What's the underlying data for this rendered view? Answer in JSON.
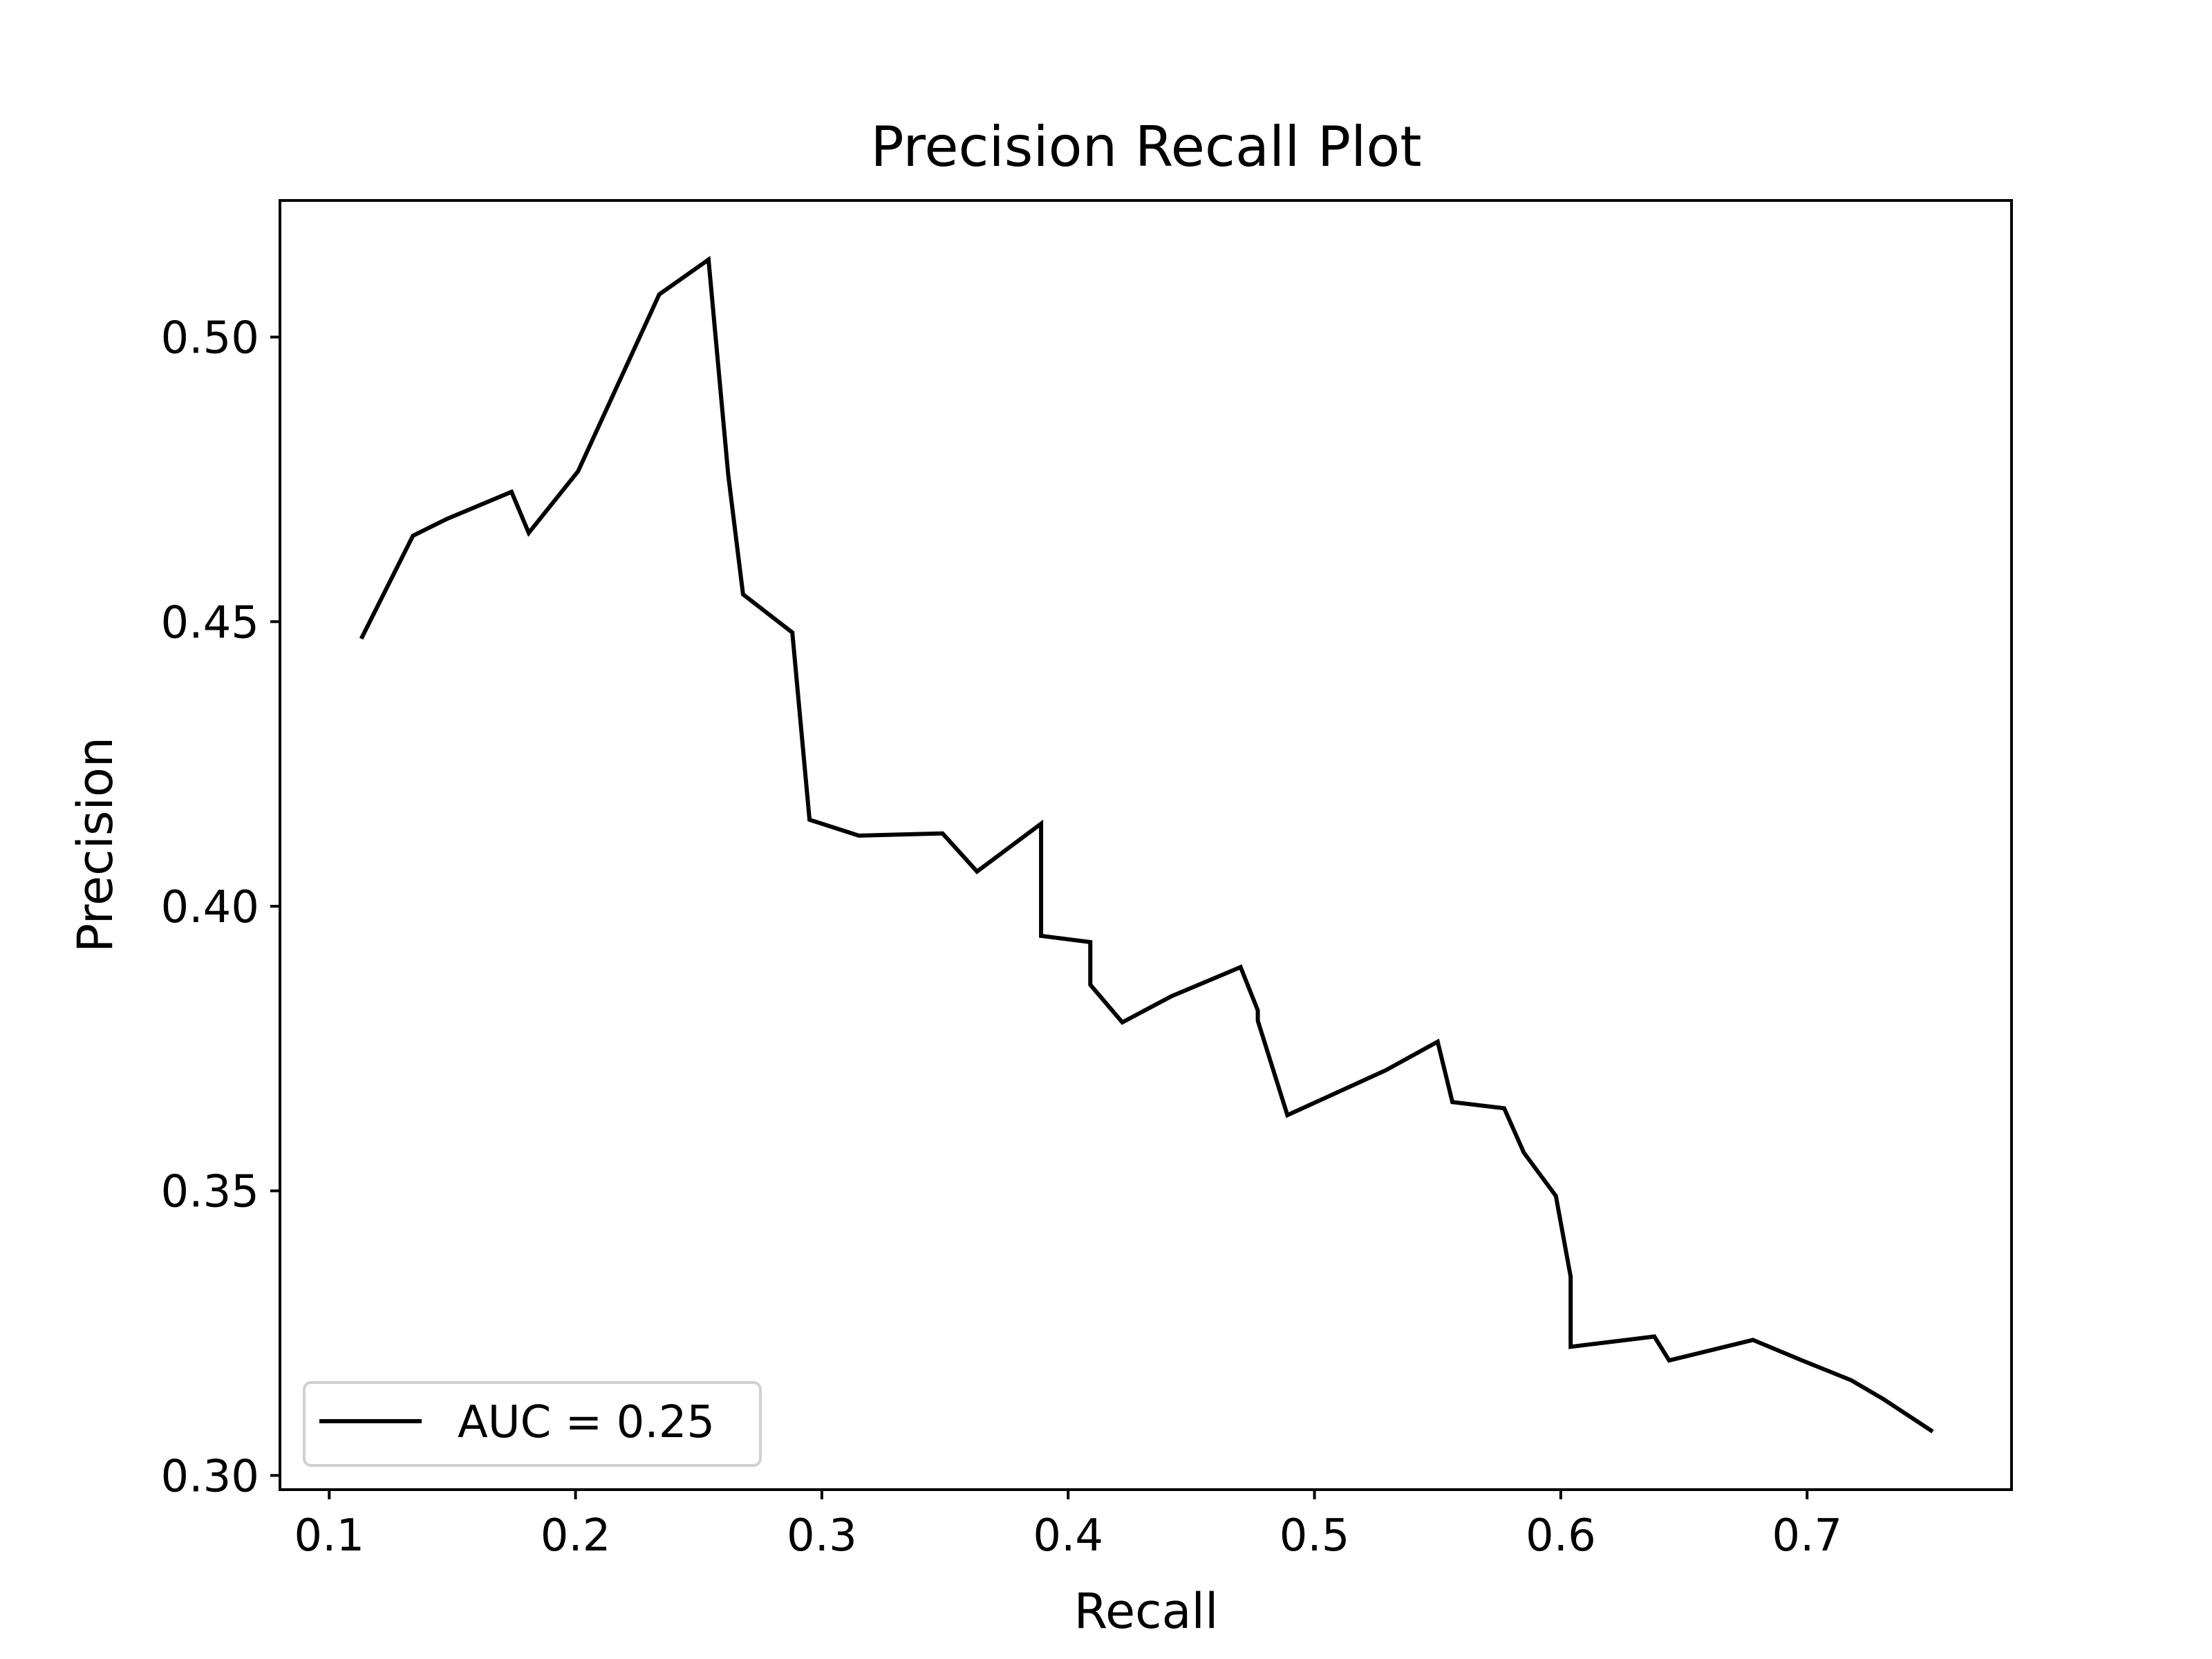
{
  "chart_data": {
    "type": "line",
    "title": "Precision Recall Plot",
    "xlabel": "Recall",
    "ylabel": "Precision",
    "xlim": [
      0.08,
      0.783
    ],
    "ylim": [
      0.2975,
      0.524
    ],
    "xticks": [
      0.1,
      0.2,
      0.3,
      0.4,
      0.5,
      0.6,
      0.7
    ],
    "xtick_labels": [
      "0.1",
      "0.2",
      "0.3",
      "0.4",
      "0.5",
      "0.6",
      "0.7"
    ],
    "yticks": [
      0.3,
      0.35,
      0.4,
      0.45,
      0.5
    ],
    "ytick_labels": [
      "0.30",
      "0.35",
      "0.40",
      "0.45",
      "0.50"
    ],
    "grid": false,
    "legend_position": "lower-left",
    "series": [
      {
        "name": "AUC = 0.25",
        "color": "#000000",
        "x": [
          0.113,
          0.134,
          0.148,
          0.174,
          0.181,
          0.201,
          0.234,
          0.254,
          0.262,
          0.268,
          0.288,
          0.295,
          0.315,
          0.349,
          0.363,
          0.389,
          0.389,
          0.409,
          0.409,
          0.422,
          0.442,
          0.47,
          0.477,
          0.477,
          0.489,
          0.529,
          0.55,
          0.556,
          0.577,
          0.585,
          0.598,
          0.604,
          0.604,
          0.638,
          0.644,
          0.678,
          0.698,
          0.718,
          0.731,
          0.751
        ],
        "y": [
          0.447,
          0.4651,
          0.4681,
          0.4728,
          0.4656,
          0.4764,
          0.5075,
          0.5136,
          0.4758,
          0.4548,
          0.4481,
          0.4152,
          0.4124,
          0.4128,
          0.4061,
          0.4145,
          0.3948,
          0.3937,
          0.3862,
          0.3796,
          0.3842,
          0.3893,
          0.3817,
          0.3799,
          0.3633,
          0.3712,
          0.3762,
          0.3656,
          0.3645,
          0.3567,
          0.3491,
          0.3349,
          0.3226,
          0.3244,
          0.3202,
          0.3238,
          0.3202,
          0.3167,
          0.3134,
          0.3077
        ]
      }
    ]
  }
}
